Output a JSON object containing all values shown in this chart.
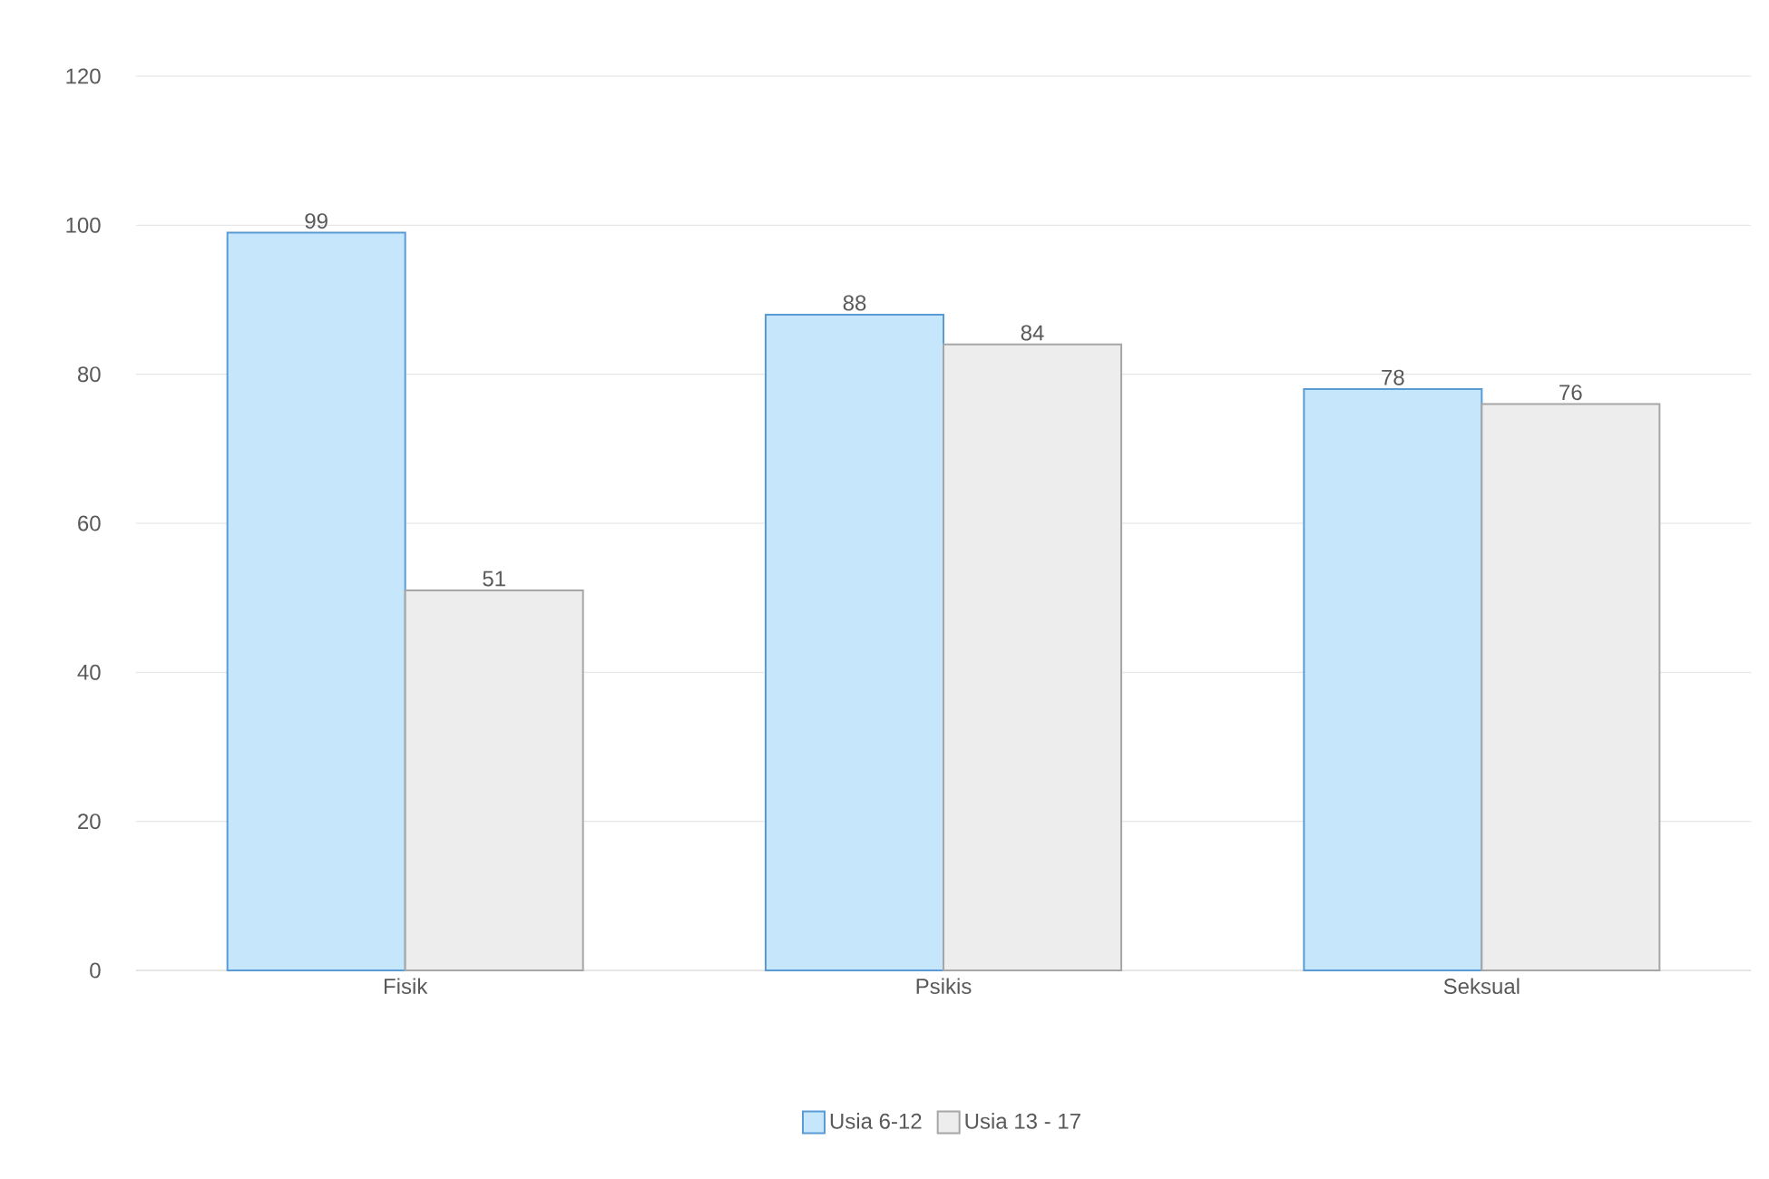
{
  "chart_data": {
    "type": "bar",
    "categories": [
      "Fisik",
      "Psikis",
      "Seksual"
    ],
    "series": [
      {
        "name": "Usia 6-12",
        "color": "#c6e7fb",
        "values": [
          99,
          88,
          78
        ]
      },
      {
        "name": "Usia 13 - 17",
        "color": "#ededed",
        "values": [
          51,
          84,
          76
        ]
      }
    ],
    "ylim": [
      0,
      120
    ],
    "yticks": [
      0,
      20,
      40,
      60,
      80,
      100,
      120
    ],
    "grid": "y",
    "legend": "bottom",
    "data_labels": true
  }
}
